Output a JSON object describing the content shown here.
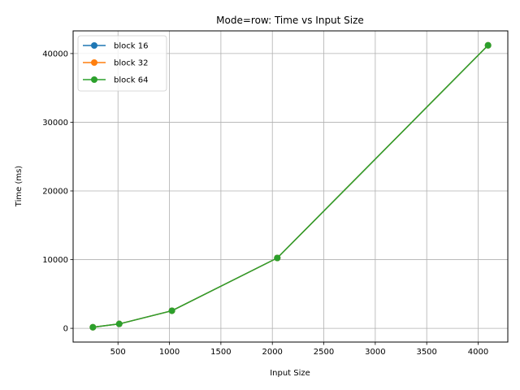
{
  "chart_data": {
    "type": "line",
    "title": "Mode=row: Time vs Input Size",
    "xlabel": "Input Size",
    "ylabel": "Time (ms)",
    "x": [
      256,
      512,
      1024,
      2048,
      4096
    ],
    "xlim": [
      64,
      4288
    ],
    "ylim": [
      -2000,
      43300
    ],
    "xticks": [
      500,
      1000,
      1500,
      2000,
      2500,
      3000,
      3500,
      4000
    ],
    "yticks": [
      0,
      10000,
      20000,
      30000,
      40000
    ],
    "grid": true,
    "legend_position": "top-left",
    "series": [
      {
        "name": "block 16",
        "color": "#1f77b4",
        "values": [
          160,
          640,
          2560,
          10240,
          41200
        ]
      },
      {
        "name": "block 32",
        "color": "#ff7f0e",
        "values": [
          160,
          640,
          2560,
          10240,
          41200
        ]
      },
      {
        "name": "block 64",
        "color": "#2ca02c",
        "values": [
          160,
          640,
          2560,
          10240,
          41200
        ]
      }
    ]
  }
}
